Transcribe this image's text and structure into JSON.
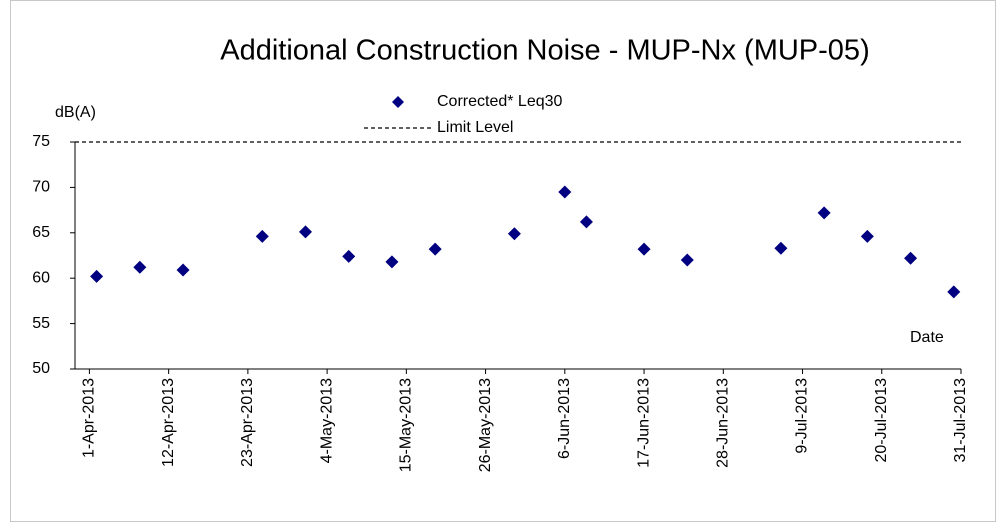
{
  "chart_data": {
    "type": "scatter",
    "title": "Additional Construction Noise - MUP-Nx  (MUP-05)",
    "y_label": "dB(A)",
    "x_label": "Date",
    "x": [
      "2013-04-02",
      "2013-04-08",
      "2013-04-14",
      "2013-04-25",
      "2013-05-01",
      "2013-05-07",
      "2013-05-13",
      "2013-05-19",
      "2013-05-30",
      "2013-06-06",
      "2013-06-09",
      "2013-06-17",
      "2013-06-23",
      "2013-07-06",
      "2013-07-12",
      "2013-07-18",
      "2013-07-24",
      "2013-07-30"
    ],
    "series": [
      {
        "name": "Corrected* Leq30",
        "color": "#000080",
        "values": [
          60.2,
          61.2,
          60.9,
          64.6,
          65.1,
          62.4,
          61.8,
          63.2,
          64.9,
          69.5,
          66.2,
          63.2,
          62.0,
          63.3,
          67.2,
          64.6,
          62.2,
          58.5
        ]
      }
    ],
    "limit": {
      "name": "Limit Level",
      "value": 75,
      "color": "#000000"
    },
    "xlim": [
      "2013-03-30",
      "2013-07-31"
    ],
    "xticks": [
      {
        "value": "2013-04-01",
        "label": "1-Apr-2013"
      },
      {
        "value": "2013-04-12",
        "label": "12-Apr-2013"
      },
      {
        "value": "2013-04-23",
        "label": "23-Apr-2013"
      },
      {
        "value": "2013-05-04",
        "label": "4-May-2013"
      },
      {
        "value": "2013-05-15",
        "label": "15-May-2013"
      },
      {
        "value": "2013-05-26",
        "label": "26-May-2013"
      },
      {
        "value": "2013-06-06",
        "label": "6-Jun-2013"
      },
      {
        "value": "2013-06-17",
        "label": "17-Jun-2013"
      },
      {
        "value": "2013-06-28",
        "label": "28-Jun-2013"
      },
      {
        "value": "2013-07-09",
        "label": "9-Jul-2013"
      },
      {
        "value": "2013-07-20",
        "label": "20-Jul-2013"
      },
      {
        "value": "2013-07-31",
        "label": "31-Jul-2013"
      }
    ],
    "ylim": [
      50,
      75
    ],
    "yticks": [
      50,
      55,
      60,
      65,
      70,
      75
    ]
  }
}
